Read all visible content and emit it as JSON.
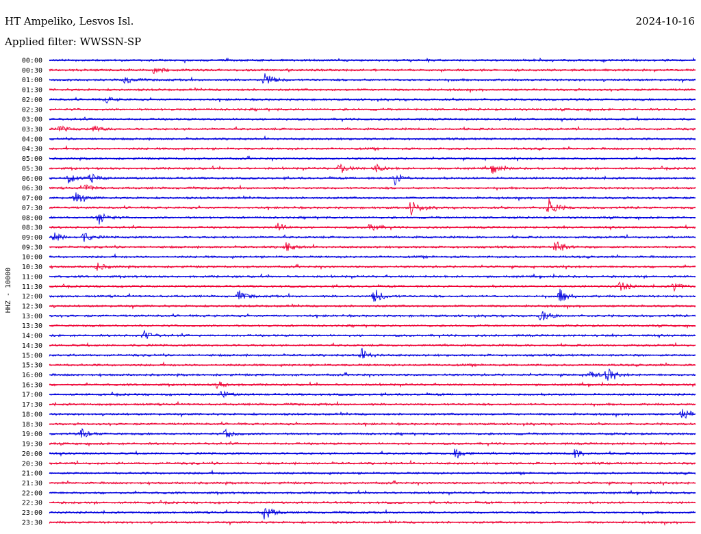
{
  "header": {
    "station": "HT Ampeliko, Lesvos Isl.",
    "date": "2024-10-16",
    "filter": "Applied filter: WWSSN-SP"
  },
  "colors": {
    "even_row": "#0000dd",
    "odd_row": "#ee0033",
    "text": "#000000"
  },
  "chart_data": {
    "type": "line",
    "title": "HT Ampeliko, Lesvos Isl.",
    "ylabel": "HHZ - 10000",
    "xlabel": "",
    "trace_minutes": 30,
    "series_count": 48,
    "row_labels": [
      "00:00",
      "00:30",
      "01:00",
      "01:30",
      "02:00",
      "02:30",
      "03:00",
      "03:30",
      "04:00",
      "04:30",
      "05:00",
      "05:30",
      "06:00",
      "06:30",
      "07:00",
      "07:30",
      "08:00",
      "08:30",
      "09:00",
      "09:30",
      "10:00",
      "10:30",
      "11:00",
      "11:30",
      "12:00",
      "12:30",
      "13:00",
      "13:30",
      "14:00",
      "14:30",
      "15:00",
      "15:30",
      "16:00",
      "16:30",
      "17:00",
      "17:30",
      "18:00",
      "18:30",
      "19:00",
      "19:30",
      "20:00",
      "20:30",
      "21:00",
      "21:30",
      "22:00",
      "22:30",
      "23:00",
      "23:30"
    ],
    "events": [
      {
        "row": "00:30",
        "minute": 4.9,
        "amp": 0.5
      },
      {
        "row": "01:00",
        "minute": 3.5,
        "amp": 0.5
      },
      {
        "row": "01:00",
        "minute": 10.0,
        "amp": 1.0
      },
      {
        "row": "02:00",
        "minute": 2.6,
        "amp": 0.4
      },
      {
        "row": "03:30",
        "minute": 0.5,
        "amp": 0.4
      },
      {
        "row": "03:30",
        "minute": 2.1,
        "amp": 0.4
      },
      {
        "row": "05:30",
        "minute": 13.5,
        "amp": 0.7
      },
      {
        "row": "05:30",
        "minute": 15.1,
        "amp": 0.6
      },
      {
        "row": "05:30",
        "minute": 20.6,
        "amp": 0.6
      },
      {
        "row": "06:00",
        "minute": 0.9,
        "amp": 0.6
      },
      {
        "row": "06:00",
        "minute": 1.9,
        "amp": 0.6
      },
      {
        "row": "06:00",
        "minute": 16.0,
        "amp": 1.0
      },
      {
        "row": "06:30",
        "minute": 1.7,
        "amp": 0.5
      },
      {
        "row": "07:00",
        "minute": 1.2,
        "amp": 0.8
      },
      {
        "row": "07:30",
        "minute": 16.8,
        "amp": 1.0
      },
      {
        "row": "07:30",
        "minute": 23.2,
        "amp": 1.2
      },
      {
        "row": "08:00",
        "minute": 2.3,
        "amp": 0.9
      },
      {
        "row": "08:30",
        "minute": 10.6,
        "amp": 0.6
      },
      {
        "row": "08:30",
        "minute": 14.9,
        "amp": 0.6
      },
      {
        "row": "09:00",
        "minute": 0.2,
        "amp": 0.7
      },
      {
        "row": "09:00",
        "minute": 1.6,
        "amp": 0.6
      },
      {
        "row": "09:30",
        "minute": 11.0,
        "amp": 0.6
      },
      {
        "row": "09:30",
        "minute": 23.5,
        "amp": 1.0
      },
      {
        "row": "10:30",
        "minute": 2.2,
        "amp": 0.5
      },
      {
        "row": "11:30",
        "minute": 26.5,
        "amp": 0.7
      },
      {
        "row": "11:30",
        "minute": 29.0,
        "amp": 0.6
      },
      {
        "row": "12:00",
        "minute": 8.8,
        "amp": 0.7
      },
      {
        "row": "12:00",
        "minute": 15.1,
        "amp": 1.0
      },
      {
        "row": "12:00",
        "minute": 23.7,
        "amp": 0.9
      },
      {
        "row": "13:00",
        "minute": 22.8,
        "amp": 0.8
      },
      {
        "row": "14:00",
        "minute": 4.4,
        "amp": 0.6
      },
      {
        "row": "15:00",
        "minute": 14.5,
        "amp": 0.7
      },
      {
        "row": "16:00",
        "minute": 25.0,
        "amp": 0.7
      },
      {
        "row": "16:00",
        "minute": 25.9,
        "amp": 0.9
      },
      {
        "row": "16:30",
        "minute": 7.8,
        "amp": 0.5
      },
      {
        "row": "17:00",
        "minute": 8.0,
        "amp": 0.5
      },
      {
        "row": "18:00",
        "minute": 29.4,
        "amp": 0.8
      },
      {
        "row": "19:00",
        "minute": 1.5,
        "amp": 0.6
      },
      {
        "row": "19:00",
        "minute": 8.2,
        "amp": 0.6
      },
      {
        "row": "20:00",
        "minute": 18.8,
        "amp": 0.9
      },
      {
        "row": "20:00",
        "minute": 24.4,
        "amp": 0.6
      },
      {
        "row": "23:00",
        "minute": 10.0,
        "amp": 1.0
      }
    ]
  }
}
